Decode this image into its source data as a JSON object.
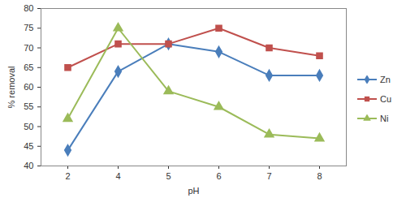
{
  "chart_data": {
    "type": "line",
    "x_label": "pH",
    "y_label": "% removal",
    "categories": [
      2,
      4,
      5,
      6,
      7,
      8
    ],
    "series": [
      {
        "name": "Zn",
        "color": "#4a7ebb",
        "marker": "diamond",
        "values": [
          44,
          64,
          71,
          69,
          63,
          63
        ]
      },
      {
        "name": "Cu",
        "color": "#c0504d",
        "marker": "square",
        "values": [
          65,
          71,
          71,
          75,
          70,
          68
        ]
      },
      {
        "name": "Ni",
        "color": "#9bbb59",
        "marker": "triangle",
        "values": [
          52,
          75,
          59,
          55,
          48,
          47
        ]
      }
    ],
    "ylim": [
      40,
      80
    ],
    "yticks": [
      40,
      45,
      50,
      55,
      60,
      65,
      70,
      75,
      80
    ],
    "grid": false,
    "legend": "right"
  }
}
